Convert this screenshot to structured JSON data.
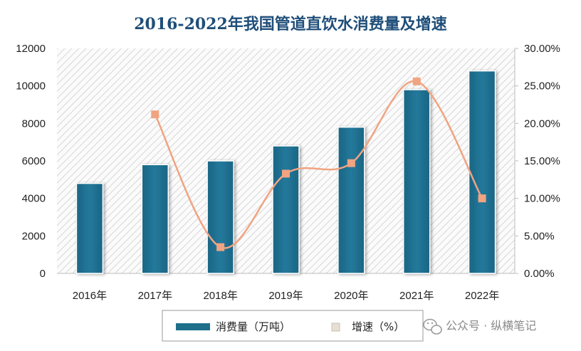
{
  "chart_data": {
    "type": "bar",
    "title": "2016-2022年我国管道直饮水消费量及增速",
    "categories": [
      "2016年",
      "2017年",
      "2018年",
      "2019年",
      "2020年",
      "2021年",
      "2022年"
    ],
    "series": [
      {
        "name": "消费量（万吨）",
        "type": "bar",
        "axis": "left",
        "color": "#1f6f8b",
        "values": [
          4800,
          5800,
          6000,
          6800,
          7800,
          9800,
          10800
        ]
      },
      {
        "name": "增速（%）",
        "type": "line",
        "axis": "right",
        "color": "#f0a482",
        "values": [
          null,
          21.2,
          3.5,
          13.3,
          14.7,
          25.6,
          10.0
        ]
      }
    ],
    "y_left": {
      "min": 0,
      "max": 12000,
      "ticks": [
        "0",
        "2000",
        "4000",
        "6000",
        "8000",
        "10000",
        "12000"
      ]
    },
    "y_right": {
      "min": 0,
      "max": 30,
      "ticks": [
        "0.00%",
        "5.00%",
        "10.00%",
        "15.00%",
        "20.00%",
        "25.00%",
        "30.00%"
      ]
    },
    "legend_position": "bottom",
    "grid": false,
    "plot_background": "diagonal hatch"
  },
  "legend": {
    "bar_label": "消费量（万吨）",
    "line_label": "增速（%）"
  },
  "watermark": {
    "icon": "wechat-icon",
    "text": "公众号 · 纵横笔记"
  }
}
